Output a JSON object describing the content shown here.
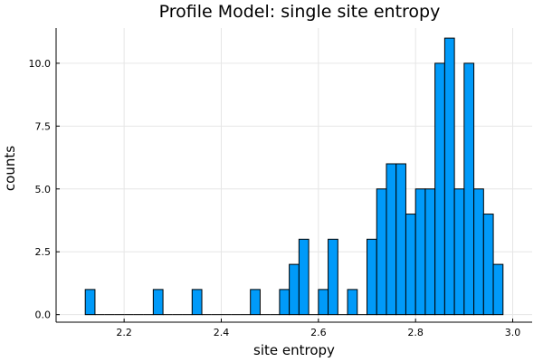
{
  "chart_data": {
    "type": "bar",
    "title": "Profile Model: single site entropy",
    "xlabel": "site entropy",
    "ylabel": "counts",
    "xlim": [
      2.06,
      3.04
    ],
    "ylim": [
      -0.3,
      11.4
    ],
    "bin_width": 0.02,
    "x_ticks": [
      2.2,
      2.4,
      2.6,
      2.8,
      3.0
    ],
    "x_tick_labels": [
      "2.2",
      "2.4",
      "2.6",
      "2.8",
      "3.0"
    ],
    "y_ticks": [
      0,
      2.5,
      5,
      7.5,
      10
    ],
    "y_tick_labels": [
      "0.0",
      "2.5",
      "5.0",
      "7.5",
      "10.0"
    ],
    "grid": true,
    "legend": false,
    "bar_color": "#009af9",
    "bins_start": 2.12,
    "counts": [
      1,
      0,
      0,
      0,
      0,
      0,
      0,
      1,
      0,
      0,
      0,
      1,
      0,
      0,
      0,
      0,
      0,
      1,
      0,
      0,
      1,
      2,
      3,
      0,
      1,
      3,
      0,
      1,
      0,
      3,
      5,
      6,
      6,
      4,
      5,
      5,
      10,
      11,
      5,
      10,
      5,
      4,
      2
    ]
  }
}
